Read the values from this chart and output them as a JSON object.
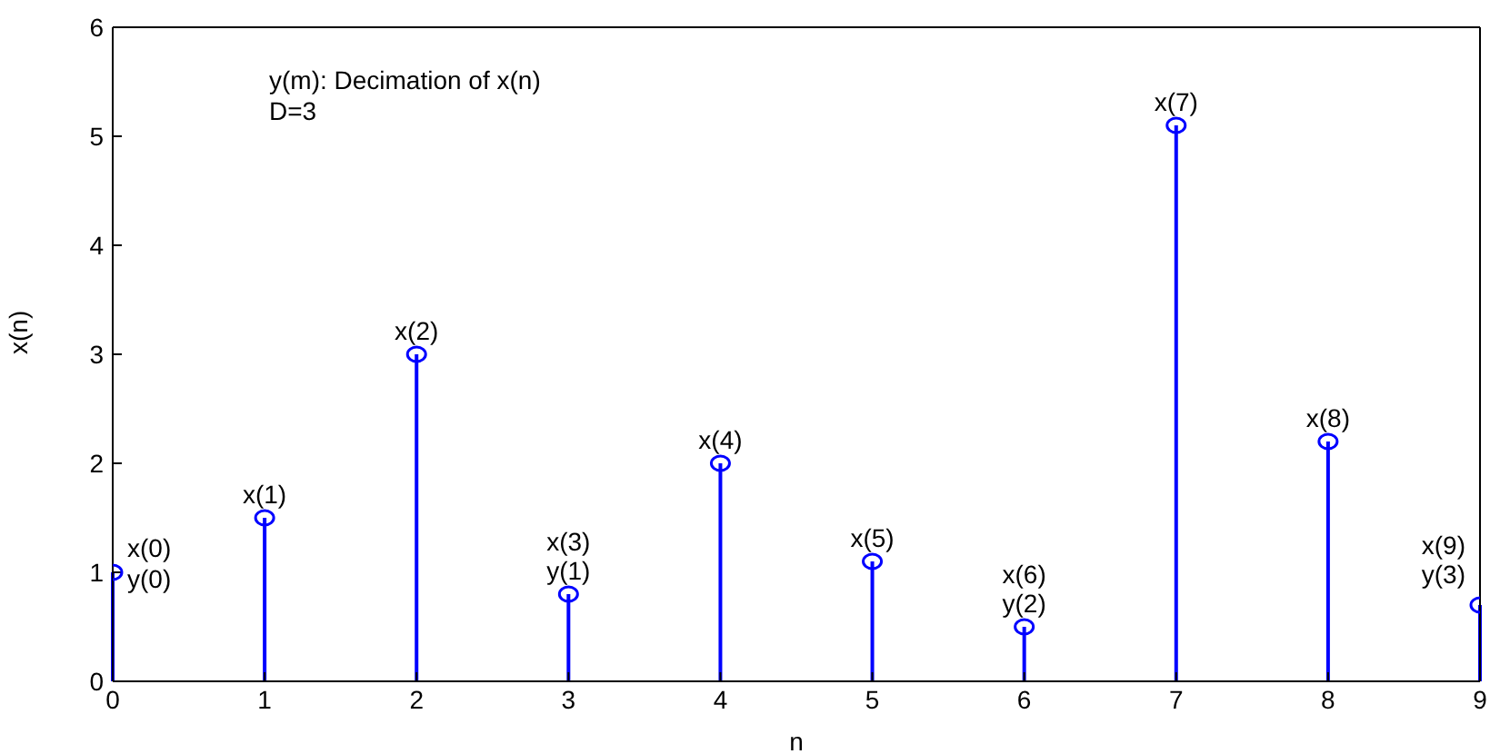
{
  "chart_data": {
    "type": "lollipop",
    "xlabel": "n",
    "ylabel": "x(n)",
    "x": [
      0,
      1,
      2,
      3,
      4,
      5,
      6,
      7,
      8,
      9
    ],
    "values": [
      1.0,
      1.5,
      3.0,
      0.8,
      2.0,
      1.1,
      0.5,
      5.1,
      2.2,
      0.7
    ],
    "color": "#0000ff",
    "marker": "circle",
    "xlim": [
      0,
      9
    ],
    "xticks": [
      0,
      1,
      2,
      3,
      4,
      5,
      6,
      7,
      8,
      9
    ],
    "ylim": [
      0,
      6
    ],
    "yticks": [
      0,
      1,
      2,
      3,
      4,
      5,
      6
    ],
    "annotations": [
      "y(m): Decimation of x(n)",
      "D=3",
      {
        "text": "x(0)",
        "x": 0,
        "y": 1.0
      },
      {
        "text": "y(0)",
        "x": 0,
        "y": 1.0
      },
      {
        "text": "x(1)",
        "x": 1,
        "y": 1.5
      },
      {
        "text": "x(2)",
        "x": 2,
        "y": 3.0
      },
      {
        "text": "x(3)",
        "x": 3,
        "y": 0.8
      },
      {
        "text": "y(1)",
        "x": 3,
        "y": 0.8
      },
      {
        "text": "x(4)",
        "x": 4,
        "y": 2.0
      },
      {
        "text": "x(5)",
        "x": 5,
        "y": 1.1
      },
      {
        "text": "x(6)",
        "x": 6,
        "y": 0.5
      },
      {
        "text": "y(2)",
        "x": 6,
        "y": 0.5
      },
      {
        "text": "x(7)",
        "x": 7,
        "y": 5.1
      },
      {
        "text": "x(8)",
        "x": 8,
        "y": 2.2
      },
      {
        "text": "x(9)",
        "x": 9,
        "y": 0.7
      },
      {
        "text": "y(3)",
        "x": 9,
        "y": 0.7
      }
    ]
  }
}
